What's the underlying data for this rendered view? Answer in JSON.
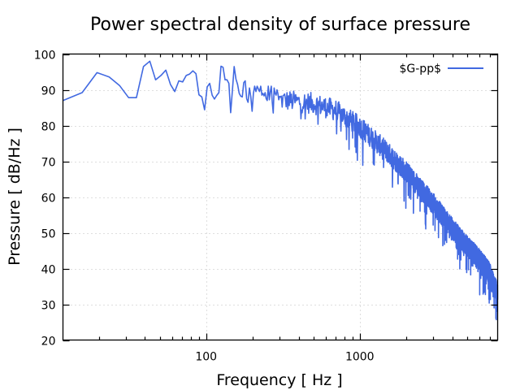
{
  "chart_data": {
    "type": "line",
    "title": "Power spectral density of surface pressure",
    "xlabel": "Frequency [ Hz ]",
    "ylabel": "Pressure [ dB/Hz ]",
    "xscale": "log",
    "xlim": [
      11.7,
      7900
    ],
    "ylim": [
      20,
      100
    ],
    "xticks": [
      100,
      1000
    ],
    "xtick_labels": [
      "100",
      "1000"
    ],
    "yticks": [
      20,
      30,
      40,
      50,
      60,
      70,
      80,
      90,
      100
    ],
    "ytick_labels": [
      "20",
      "30",
      "40",
      "50",
      "60",
      "70",
      "80",
      "90",
      "100"
    ],
    "grid": true,
    "legend": {
      "position": "top-right"
    },
    "series": [
      {
        "name": "$G-pp$",
        "color": "#4169e1",
        "low_freq_points": {
          "x": [
            11.7,
            15.6,
            19.5,
            23.4,
            27.3,
            31.3,
            35.2,
            39.1,
            43.0,
            46.9,
            50.8,
            54.7,
            58.6,
            62.5,
            66.4,
            70.3,
            74.2,
            78.1,
            82.0,
            85.9,
            89.8,
            93.8,
            97.7,
            101.6,
            105.5,
            109.4,
            113.3,
            117.2,
            121.1,
            125.0,
            128.9,
            132.8,
            136.7,
            140.6,
            144.5,
            148.4,
            152.3,
            156.3,
            160.2,
            164.1,
            168.0,
            171.9,
            175.8,
            179.7,
            183.6,
            187.5,
            191.4,
            195.3,
            199.2,
            203.1,
            207.0,
            210.9,
            214.8,
            218.8,
            222.7,
            226.6,
            230.5,
            234.4,
            238.3,
            242.2,
            246.1,
            250.0,
            253.9,
            257.8,
            261.7,
            265.6,
            269.5,
            273.4,
            277.3,
            281.3,
            285.2,
            289.1,
            293.0,
            296.9
          ],
          "y": [
            87.0,
            89.2,
            94.8,
            93.6,
            91.2,
            87.8,
            87.8,
            96.5,
            98.0,
            92.8,
            94.0,
            95.5,
            91.5,
            89.5,
            92.5,
            92.2,
            94.0,
            94.4,
            95.3,
            94.5,
            88.6,
            88.0,
            84.4,
            90.8,
            91.8,
            88.5,
            87.4,
            88.4,
            89.2,
            96.6,
            96.3,
            92.8,
            92.8,
            91.8,
            83.6,
            90.0,
            96.5,
            93.0,
            91.5,
            89.0,
            88.2,
            88.0,
            92.0,
            92.5,
            87.5,
            86.5,
            90.5,
            88.0,
            84.0,
            89.0,
            91.0,
            89.5,
            91.0,
            90.2,
            89.5,
            91.0,
            88.5,
            89.0,
            88.3,
            89.2,
            87.5,
            87.0,
            91.0,
            87.2,
            89.5,
            91.0,
            86.5,
            83.5,
            90.5,
            89.0,
            88.5,
            90.0,
            89.0,
            87.2
          ]
        },
        "high_freq_trend": {
          "x": [
            300,
            500,
            700,
            1000,
            1500,
            2000,
            3000,
            4000,
            5000,
            6000,
            7000,
            7900
          ],
          "y_mean": [
            87.5,
            86.5,
            84.5,
            80.0,
            73.0,
            67.5,
            58.5,
            51.5,
            46.5,
            43.0,
            39.0,
            33.0
          ],
          "noise_spread_db": 6
        }
      }
    ]
  }
}
